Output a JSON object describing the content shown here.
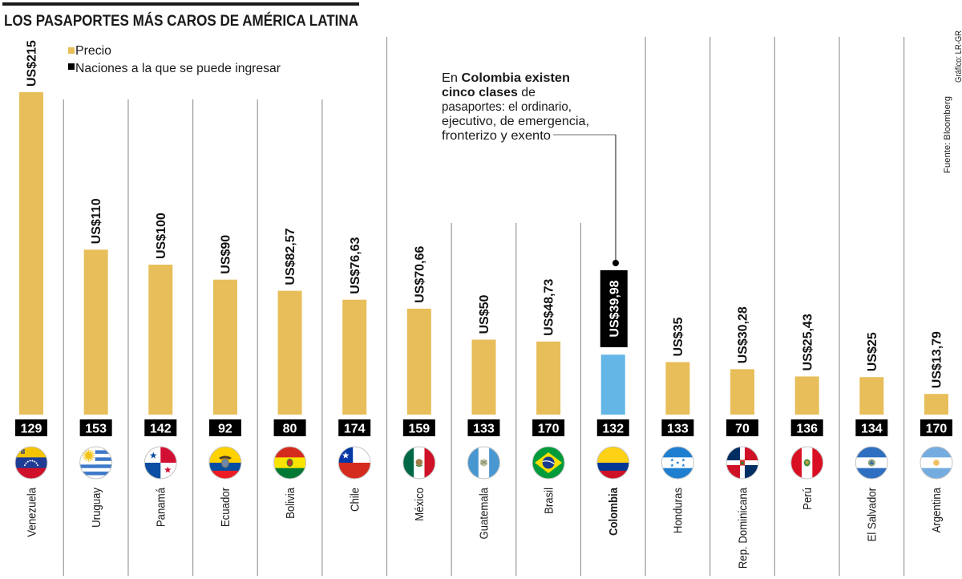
{
  "chart_data": {
    "type": "bar",
    "title": "LOS PASAPORTES MÁS CAROS DE AMÉRICA LATINA",
    "xlabel": "",
    "ylabel": "",
    "categories": [
      "Venezuela",
      "Uruguay",
      "Panamá",
      "Ecuador",
      "Bolivia",
      "Chile",
      "México",
      "Guatemala",
      "Brasil",
      "Colombia",
      "Honduras",
      "Rep. Dominicana",
      "Perú",
      "El Salvador",
      "Argentina"
    ],
    "series": [
      {
        "name": "Precio",
        "unit": "US$",
        "color": "#E8BE5A",
        "values": [
          215,
          110,
          100,
          90,
          82.57,
          76.63,
          70.66,
          50,
          48.73,
          39.98,
          35,
          30.28,
          25.43,
          25,
          13.79
        ],
        "labels": [
          "US$215",
          "US$110",
          "US$100",
          "US$90",
          "US$82,57",
          "US$76,63",
          "US$70,66",
          "US$50",
          "US$48,73",
          "US$39,98",
          "US$35",
          "US$30,28",
          "US$25,43",
          "US$25",
          "US$13,79"
        ]
      },
      {
        "name": "Naciones a la que se puede ingresar",
        "color": "#000000",
        "values": [
          129,
          153,
          142,
          92,
          80,
          174,
          159,
          133,
          170,
          132,
          133,
          70,
          136,
          134,
          170
        ]
      }
    ],
    "highlight": {
      "category": "Colombia",
      "color": "#63B6E6"
    },
    "flags": [
      "venezuela-flag",
      "uruguay-flag",
      "panama-flag",
      "ecuador-flag",
      "bolivia-flag",
      "chile-flag",
      "mexico-flag",
      "guatemala-flag",
      "brasil-flag",
      "colombia-flag",
      "honduras-flag",
      "rep-dominicana-flag",
      "peru-flag",
      "el-salvador-flag",
      "argentina-flag"
    ],
    "ylim": [
      0,
      215
    ],
    "grid": false,
    "legend": "top-left"
  },
  "annotation": {
    "lines": [
      [
        "En ",
        "Colombia existen"
      ],
      [
        "cinco clases",
        " de"
      ],
      [
        "pasaportes: el ordinario,"
      ],
      [
        "ejecutivo, de emergencia,"
      ],
      [
        "fronterizo y exento"
      ]
    ]
  },
  "credits": {
    "graphic": "Gráfico: LR-GR",
    "source": "Fuente: Bloomberg"
  }
}
